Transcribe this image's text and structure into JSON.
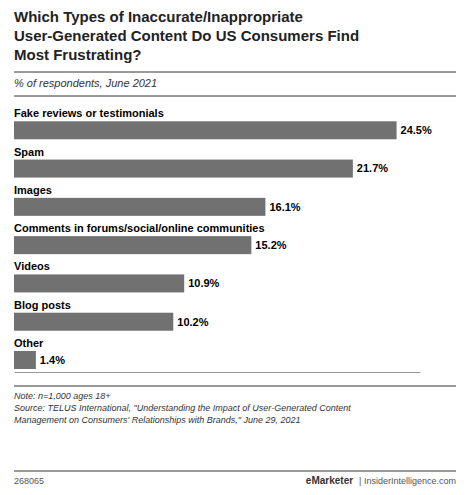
{
  "chart_data": {
    "type": "bar",
    "orientation": "horizontal",
    "title": "Which Types of Inaccurate/Inappropriate\nUser-Generated Content Do US Consumers Find\nMost Frustrating?",
    "subtitle": "% of respondents, June 2021",
    "categories": [
      "Fake reviews or testimonials",
      "Spam",
      "Images",
      "Comments in forums/social/online communities",
      "Videos",
      "Blog posts",
      "Other"
    ],
    "values": [
      24.5,
      21.7,
      16.1,
      15.2,
      10.9,
      10.2,
      1.4
    ],
    "value_labels": [
      "24.5%",
      "21.7%",
      "16.1%",
      "15.2%",
      "10.9%",
      "10.2%",
      "1.4%"
    ],
    "data_labels": true,
    "color": "#717171",
    "xlim": [
      0,
      26
    ],
    "tick_labels": false,
    "grid": false,
    "annotations": [
      "Note: n=1,000 ages 18+",
      "Source: TELUS International, \"Understanding the Impact of User-Generated Content\nManagement on Consumers' Relationships with Brands,\" June 29, 2021",
      "268065",
      "eMarketer",
      "| InsiderIntelligence.com"
    ]
  }
}
